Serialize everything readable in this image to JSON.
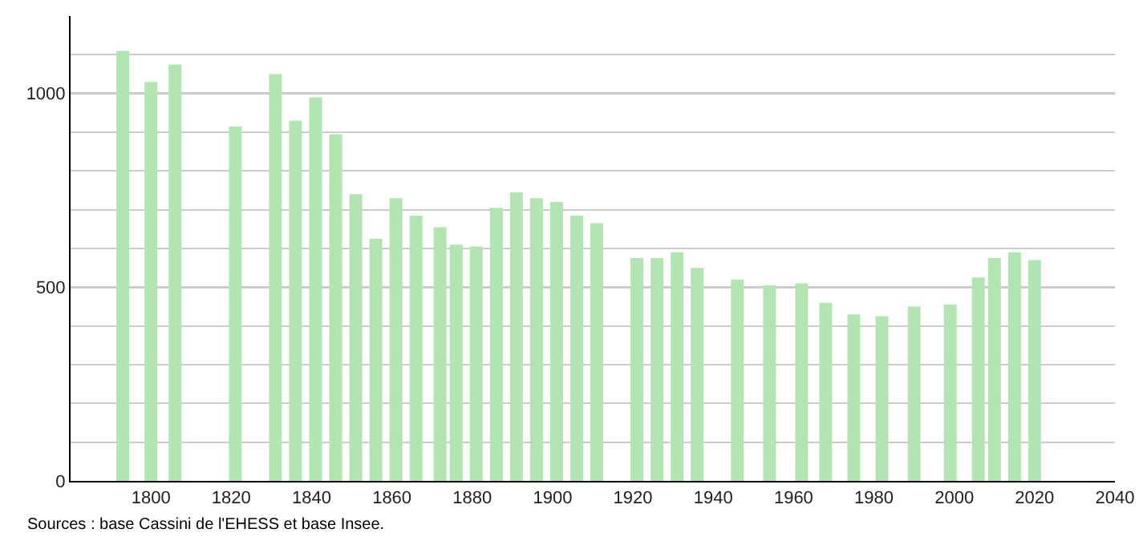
{
  "chart_data": {
    "type": "bar",
    "x": [
      1793,
      1800,
      1806,
      1821,
      1831,
      1836,
      1841,
      1846,
      1851,
      1856,
      1861,
      1866,
      1872,
      1876,
      1881,
      1886,
      1891,
      1896,
      1901,
      1906,
      1911,
      1921,
      1926,
      1931,
      1936,
      1946,
      1954,
      1962,
      1968,
      1975,
      1982,
      1990,
      1999,
      2006,
      2010,
      2015,
      2020
    ],
    "values": [
      1110,
      1030,
      1075,
      915,
      1050,
      930,
      990,
      895,
      740,
      625,
      730,
      685,
      655,
      610,
      605,
      705,
      745,
      730,
      720,
      685,
      665,
      575,
      575,
      590,
      550,
      520,
      505,
      510,
      460,
      430,
      425,
      450,
      455,
      525,
      575,
      590,
      570
    ],
    "color": "#b2e5b2",
    "xlim": [
      1780,
      2040
    ],
    "xticks": [
      1800,
      1820,
      1840,
      1860,
      1880,
      1900,
      1920,
      1940,
      1960,
      1980,
      2000,
      2020,
      2040
    ],
    "ylim": [
      0,
      1200
    ],
    "yticks": [
      0,
      {
        "value": 100,
        "label": null
      },
      {
        "value": 200,
        "label": null
      },
      {
        "value": 300,
        "label": null
      },
      {
        "value": 400,
        "label": null
      },
      500,
      {
        "value": 600,
        "label": null
      },
      {
        "value": 700,
        "label": null
      },
      {
        "value": 800,
        "label": null
      },
      {
        "value": 900,
        "label": null
      },
      1000,
      {
        "value": 1100,
        "label": null
      }
    ],
    "grid": "y",
    "annotations": [
      "Sources : base Cassini de l'EHESS et base Insee."
    ]
  }
}
